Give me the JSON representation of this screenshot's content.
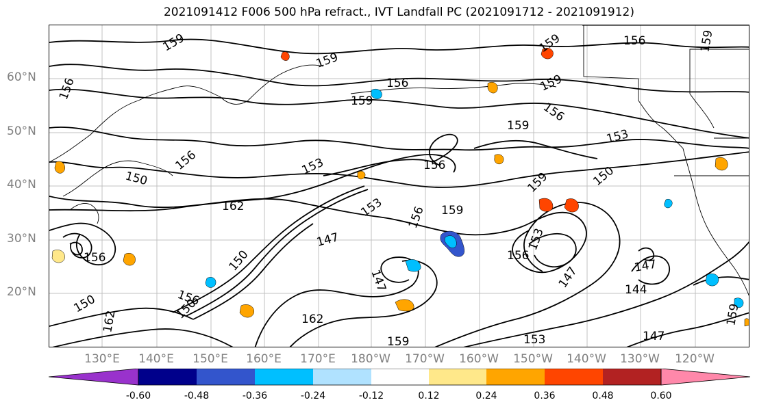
{
  "title": "2021091412 F006 500 hPa refract., IVT Landfall PC (2021091712 - 2021091912)",
  "lat_labels": [
    "60°N",
    "50°N",
    "40°N",
    "30°N",
    "20°N"
  ],
  "lon_labels": [
    "130°E",
    "140°E",
    "150°E",
    "160°E",
    "170°E",
    "180°W",
    "170°W",
    "160°W",
    "150°W",
    "140°W",
    "130°W",
    "120°W"
  ],
  "contour_labels": [
    "159",
    "156",
    "159",
    "156",
    "156",
    "159",
    "159",
    "159",
    "159",
    "156",
    "153",
    "159",
    "159",
    "153",
    "156",
    "150",
    "156",
    "150",
    "162",
    "153",
    "156",
    "159",
    "147",
    "156",
    "153",
    "147",
    "144",
    "147",
    "147",
    "159",
    "159",
    "162",
    "150",
    "153",
    "156",
    "156",
    "162",
    "150",
    "150",
    "147"
  ],
  "colorbar": {
    "tick_labels": [
      "-0.60",
      "-0.48",
      "-0.36",
      "-0.24",
      "-0.12",
      "0.12",
      "0.24",
      "0.36",
      "0.48",
      "0.60"
    ],
    "colors": [
      "#9932CC",
      "#00008B",
      "#3355CC",
      "#00BFFF",
      "#B0E2FF",
      "#FFFFFF",
      "#FFE88A",
      "#FFA500",
      "#FF4500",
      "#B22222",
      "#FF88AA"
    ]
  }
}
